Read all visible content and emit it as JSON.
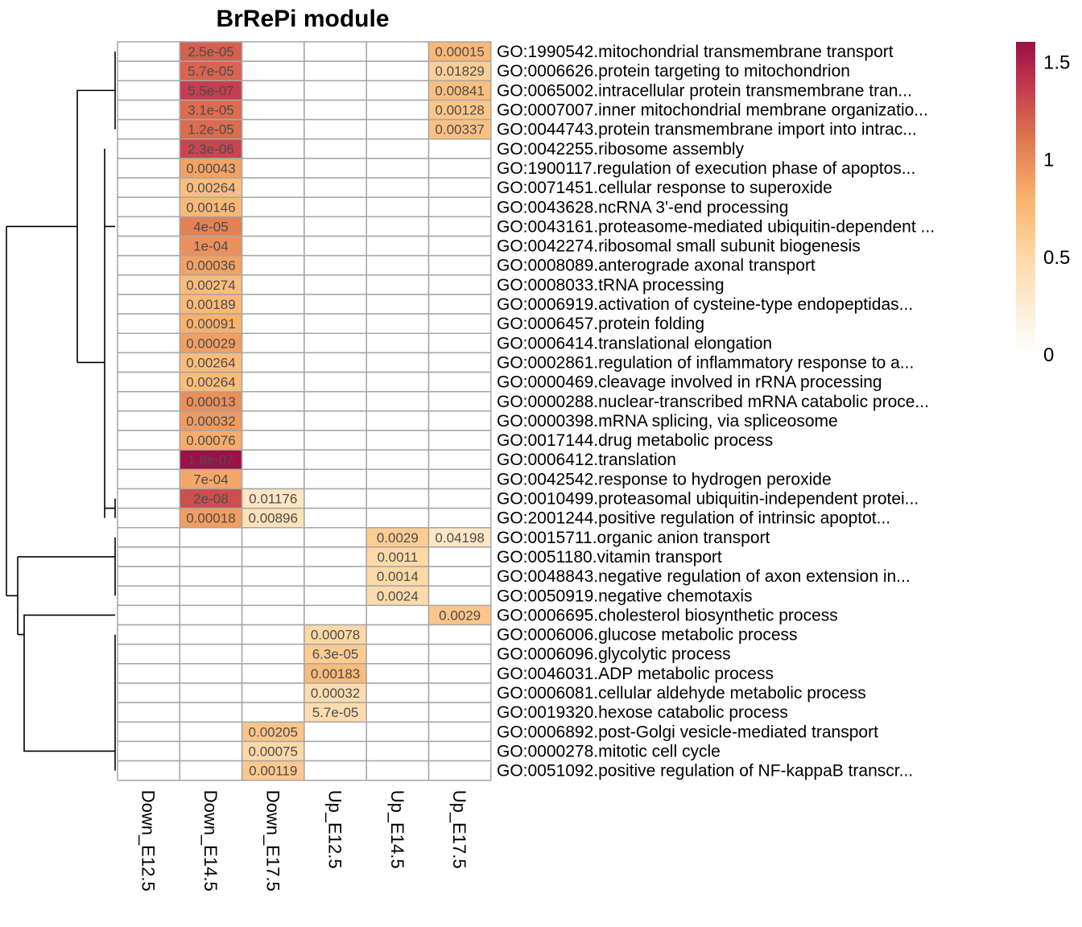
{
  "chart_data": {
    "type": "heatmap",
    "title": "BrRePi module",
    "columns": [
      "Down_E12.5",
      "Down_E14.5",
      "Down_E17.5",
      "Up_E12.5",
      "Up_E14.5",
      "Up_E17.5"
    ],
    "rows": [
      {
        "label": "GO:1990542.mitochondrial transmembrane transport",
        "cells": [
          null,
          {
            "text": "2.5e-05",
            "v": 1.2
          },
          null,
          null,
          null,
          {
            "text": "0.00015",
            "v": 0.75
          }
        ]
      },
      {
        "label": "GO:0006626.protein targeting to mitochondrion",
        "cells": [
          null,
          {
            "text": "5.7e-05",
            "v": 1.18
          },
          null,
          null,
          null,
          {
            "text": "0.01829",
            "v": 0.58
          }
        ]
      },
      {
        "label": "GO:0065002.intracellular protein transmembrane tran...",
        "cells": [
          null,
          {
            "text": "5.5e-07",
            "v": 1.35
          },
          null,
          null,
          null,
          {
            "text": "0.00841",
            "v": 0.7
          }
        ]
      },
      {
        "label": "GO:0007007.inner mitochondrial membrane organizatio...",
        "cells": [
          null,
          {
            "text": "3.1e-05",
            "v": 1.15
          },
          null,
          null,
          null,
          {
            "text": "0.00128",
            "v": 0.65
          }
        ]
      },
      {
        "label": "GO:0044743.protein transmembrane import into intrac...",
        "cells": [
          null,
          {
            "text": "1.2e-05",
            "v": 1.15
          },
          null,
          null,
          null,
          {
            "text": "0.00337",
            "v": 0.68
          }
        ]
      },
      {
        "label": "GO:0042255.ribosome assembly",
        "cells": [
          null,
          {
            "text": "2.3e-06",
            "v": 1.32
          },
          null,
          null,
          null,
          null
        ]
      },
      {
        "label": "GO:1900117.regulation of execution phase of apoptos...",
        "cells": [
          null,
          {
            "text": "0.00043",
            "v": 0.88
          },
          null,
          null,
          null,
          null
        ]
      },
      {
        "label": "GO:0071451.cellular response to superoxide",
        "cells": [
          null,
          {
            "text": "0.00264",
            "v": 0.7
          },
          null,
          null,
          null,
          null
        ]
      },
      {
        "label": "GO:0043628.ncRNA 3'-end processing",
        "cells": [
          null,
          {
            "text": "0.00146",
            "v": 0.75
          },
          null,
          null,
          null,
          null
        ]
      },
      {
        "label": "GO:0043161.proteasome-mediated ubiquitin-dependent ...",
        "cells": [
          null,
          {
            "text": "4e-05",
            "v": 1.05
          },
          null,
          null,
          null,
          null
        ]
      },
      {
        "label": "GO:0042274.ribosomal small subunit biogenesis",
        "cells": [
          null,
          {
            "text": "1e-04",
            "v": 0.97
          },
          null,
          null,
          null,
          null
        ]
      },
      {
        "label": "GO:0008089.anterograde axonal transport",
        "cells": [
          null,
          {
            "text": "0.00036",
            "v": 0.88
          },
          null,
          null,
          null,
          null
        ]
      },
      {
        "label": "GO:0008033.tRNA processing",
        "cells": [
          null,
          {
            "text": "0.00274",
            "v": 0.72
          },
          null,
          null,
          null,
          null
        ]
      },
      {
        "label": "GO:0006919.activation of cysteine-type endopeptidas...",
        "cells": [
          null,
          {
            "text": "0.00189",
            "v": 0.74
          },
          null,
          null,
          null,
          null
        ]
      },
      {
        "label": "GO:0006457.protein folding",
        "cells": [
          null,
          {
            "text": "0.00091",
            "v": 0.8
          },
          null,
          null,
          null,
          null
        ]
      },
      {
        "label": "GO:0006414.translational elongation",
        "cells": [
          null,
          {
            "text": "0.00029",
            "v": 0.9
          },
          null,
          null,
          null,
          null
        ]
      },
      {
        "label": "GO:0002861.regulation of inflammatory response to a...",
        "cells": [
          null,
          {
            "text": "0.00264",
            "v": 0.72
          },
          null,
          null,
          null,
          null
        ]
      },
      {
        "label": "GO:0000469.cleavage involved in rRNA processing",
        "cells": [
          null,
          {
            "text": "0.00264",
            "v": 0.72
          },
          null,
          null,
          null,
          null
        ]
      },
      {
        "label": "GO:0000288.nuclear-transcribed mRNA catabolic proce...",
        "cells": [
          null,
          {
            "text": "0.00013",
            "v": 0.98
          },
          null,
          null,
          null,
          null
        ]
      },
      {
        "label": "GO:0000398.mRNA splicing, via spliceosome",
        "cells": [
          null,
          {
            "text": "0.00032",
            "v": 0.92
          },
          null,
          null,
          null,
          null
        ]
      },
      {
        "label": "GO:0017144.drug metabolic process",
        "cells": [
          null,
          {
            "text": "0.00076",
            "v": 0.82
          },
          null,
          null,
          null,
          null
        ]
      },
      {
        "label": "GO:0006412.translation",
        "cells": [
          null,
          {
            "text": "1.8e-07",
            "v": 1.6
          },
          null,
          null,
          null,
          null
        ]
      },
      {
        "label": "GO:0042542.response to hydrogen peroxide",
        "cells": [
          null,
          {
            "text": "7e-04",
            "v": 0.85
          },
          null,
          null,
          null,
          null
        ]
      },
      {
        "label": "GO:0010499.proteasomal ubiquitin-independent protei...",
        "cells": [
          null,
          {
            "text": "2e-08",
            "v": 1.28
          },
          {
            "text": "0.01176",
            "v": 0.33
          },
          null,
          null,
          null
        ]
      },
      {
        "label": "GO:2001244.positive regulation of intrinsic apoptot...",
        "cells": [
          null,
          {
            "text": "0.00018",
            "v": 0.9
          },
          {
            "text": "0.00896",
            "v": 0.4
          },
          null,
          null,
          null
        ]
      },
      {
        "label": "GO:0015711.organic anion transport",
        "cells": [
          null,
          null,
          null,
          null,
          {
            "text": "0.0029",
            "v": 0.6
          },
          {
            "text": "0.04198",
            "v": 0.32
          }
        ]
      },
      {
        "label": "GO:0051180.vitamin transport",
        "cells": [
          null,
          null,
          null,
          null,
          {
            "text": "0.0011",
            "v": 0.5
          },
          null
        ]
      },
      {
        "label": "GO:0048843.negative regulation of axon extension in...",
        "cells": [
          null,
          null,
          null,
          null,
          {
            "text": "0.0014",
            "v": 0.5
          },
          null
        ]
      },
      {
        "label": "GO:0050919.negative chemotaxis",
        "cells": [
          null,
          null,
          null,
          null,
          {
            "text": "0.0024",
            "v": 0.48
          },
          null
        ]
      },
      {
        "label": "GO:0006695.cholesterol biosynthetic process",
        "cells": [
          null,
          null,
          null,
          null,
          null,
          {
            "text": "0.0029",
            "v": 0.65
          }
        ]
      },
      {
        "label": "GO:0006006.glucose metabolic process",
        "cells": [
          null,
          null,
          null,
          {
            "text": "0.00078",
            "v": 0.5
          },
          null,
          null
        ]
      },
      {
        "label": "GO:0006096.glycolytic process",
        "cells": [
          null,
          null,
          null,
          {
            "text": "6.3e-05",
            "v": 0.6
          },
          null,
          null
        ]
      },
      {
        "label": "GO:0046031.ADP metabolic process",
        "cells": [
          null,
          null,
          null,
          {
            "text": "0.00183",
            "v": 0.72
          },
          null,
          null
        ]
      },
      {
        "label": "GO:0006081.cellular aldehyde metabolic process",
        "cells": [
          null,
          null,
          null,
          {
            "text": "0.00032",
            "v": 0.45
          },
          null,
          null
        ]
      },
      {
        "label": "GO:0019320.hexose catabolic process",
        "cells": [
          null,
          null,
          null,
          {
            "text": "5.7e-05",
            "v": 0.45
          },
          null,
          null
        ]
      },
      {
        "label": "GO:0006892.post-Golgi vesicle-mediated transport",
        "cells": [
          null,
          null,
          {
            "text": "0.00205",
            "v": 0.65
          },
          null,
          null,
          null
        ]
      },
      {
        "label": "GO:0000278.mitotic cell cycle",
        "cells": [
          null,
          null,
          {
            "text": "0.00075",
            "v": 0.5
          },
          null,
          null,
          null
        ]
      },
      {
        "label": "GO:0051092.positive regulation of NF-kappaB transcr...",
        "cells": [
          null,
          null,
          {
            "text": "0.00119",
            "v": 0.62
          },
          null,
          null,
          null
        ]
      }
    ],
    "color_scale": {
      "min": 0,
      "max": 1.6,
      "stops": [
        {
          "v": 0,
          "color": "#ffffff"
        },
        {
          "v": 0.5,
          "color": "#fdd9a6"
        },
        {
          "v": 0.8,
          "color": "#f9b16c"
        },
        {
          "v": 1.1,
          "color": "#e0774f"
        },
        {
          "v": 1.35,
          "color": "#c53e4f"
        },
        {
          "v": 1.6,
          "color": "#9b1047"
        }
      ]
    },
    "legend_ticks": [
      "0",
      "0.5",
      "1",
      "1.5"
    ],
    "legend_tick_values": [
      0,
      0.5,
      1,
      1.5
    ],
    "grid": true,
    "grid_color": "#a6a6a6",
    "cell_text_color": "#4d4d4d",
    "legend_placement": "top-right"
  }
}
